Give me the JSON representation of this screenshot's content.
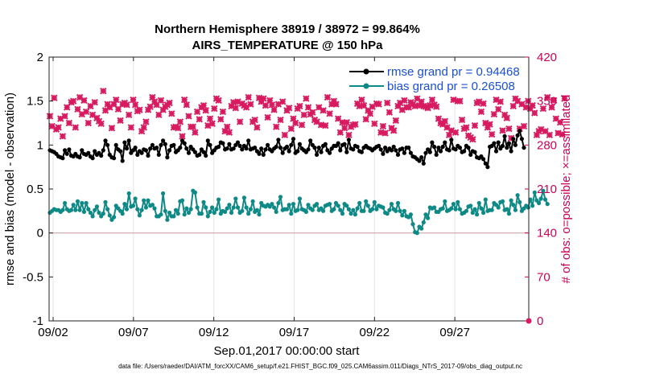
{
  "chart_data": {
    "type": "line",
    "title": "Northern Hemisphere 38919 / 38972 = 99.864%",
    "subtitle": "AIRS_TEMPERATURE @ 150 hPa",
    "ylabel": "rmse and bias (model - observation)",
    "ylabel_right": "# of obs: o=possible; ×=assimilated",
    "xlabel": "Sep.01,2017 00:00:00 start",
    "footer": "data file: /Users/raeder/DAI/ATM_forcXX/CAM6_setup/f.e21.FHIST_BGC.f09_025.CAM6assim.011/Diags_NTrS_2017-09/obs_diag_output.nc",
    "ylim": [
      -1,
      2
    ],
    "ylim_right": [
      0,
      420
    ],
    "xlim_days": [
      1.55,
      31.4
    ],
    "yticks": [
      "2",
      "1.5",
      "1",
      "0.5",
      "0",
      "-0.5",
      "-1"
    ],
    "yticks_right": [
      "420",
      "350",
      "280",
      "210",
      "140",
      "70",
      "0"
    ],
    "xticks": [
      {
        "day": 1.8,
        "label": "09/02"
      },
      {
        "day": 6.8,
        "label": "09/07"
      },
      {
        "day": 11.8,
        "label": "09/12"
      },
      {
        "day": 16.8,
        "label": "09/17"
      },
      {
        "day": 21.8,
        "label": "09/22"
      },
      {
        "day": 26.8,
        "label": "09/27"
      }
    ],
    "colors": {
      "rmse": "#000000",
      "bias": "#0e8a86",
      "obs": "#d81b60",
      "legend_text": "#1a4fd6",
      "right_axis": "#cc0055"
    },
    "legend": {
      "placement": "top-right",
      "rmse_label": "rmse grand pr = 0.94468",
      "bias_label": "bias grand pr = 0.26508"
    },
    "series": [
      {
        "name": "rmse",
        "values": [
          0.94,
          0.93,
          0.92,
          0.9,
          0.87,
          0.86,
          0.85,
          0.94,
          0.9,
          0.95,
          0.88,
          0.87,
          0.9,
          0.87,
          0.86,
          0.94,
          0.9,
          0.89,
          0.91,
          0.87,
          0.85,
          0.93,
          0.89,
          0.91,
          0.88,
          0.94,
          1.05,
          1.0,
          0.89,
          0.86,
          0.85,
          1.0,
          0.95,
          0.93,
          0.82,
          1.03,
          0.96,
          1.05,
          0.91,
          0.94,
          0.97,
          0.89,
          0.93,
          0.91,
          0.95,
          0.94,
          0.88,
          0.96,
          1.0,
          0.96,
          0.97,
          0.89,
          1.0,
          1.05,
          1.01,
          0.86,
          0.94,
          0.99,
          1.0,
          0.92,
          0.94,
          0.97,
          1.05,
          1.02,
          0.96,
          0.91,
          0.98,
          0.95,
          0.92,
          0.88,
          0.89,
          0.95,
          0.92,
          0.88,
          1.05,
          1.0,
          0.91,
          0.94,
          0.97,
          0.98,
          1.03,
          1.02,
          0.95,
          0.96,
          1.01,
          0.95,
          0.96,
          1.0,
          1.03,
          0.99,
          0.95,
          0.99,
          0.96,
          1.05,
          0.95,
          0.96,
          0.97,
          0.93,
          0.9,
          0.96,
          0.89,
          0.95,
          1.0,
          0.95,
          0.93,
          0.96,
          0.98,
          1.06,
          0.97,
          0.91,
          0.96,
          0.98,
          0.93,
          1.0,
          1.07,
          0.91,
          0.93,
          1.01,
          0.96,
          0.94,
          0.92,
          0.95,
          1.05,
          1.0,
          0.97,
          0.89,
          0.97,
          0.92,
          0.99,
          1.01,
          0.94,
          0.91,
          0.96,
          0.99,
          0.99,
          1.02,
          0.94,
          1.0,
          1.01,
          0.92,
          1.06,
          0.96,
          0.95,
          0.99,
          0.98,
          0.93,
          0.92,
          0.97,
          0.99,
          0.97,
          0.96,
          0.94,
          0.96,
          0.98,
          0.99,
          0.95,
          0.9,
          0.97,
          0.93,
          0.96,
          0.94,
          0.98,
          0.94,
          0.89,
          0.95,
          0.96,
          0.91,
          0.97,
          0.97,
          0.91,
          0.87,
          0.86,
          0.84,
          0.82,
          0.86,
          0.79,
          0.91,
          0.95,
          0.92,
          1.03,
          0.98,
          0.89,
          0.97,
          0.93,
          0.98,
          1.03,
          0.95,
          0.94,
          1.06,
          0.96,
          0.95,
          0.99,
          0.97,
          0.92,
          0.93,
          0.99,
          0.97,
          0.89,
          0.93,
          0.92,
          0.86,
          0.85,
          0.87,
          0.84,
          0.79,
          0.75,
          0.98,
          0.99,
          1.02,
          0.93,
          1.03,
          0.96,
          0.99,
          1.1,
          0.97,
          1.02,
          0.93,
          1.07,
          1.0,
          1.11,
          1.16,
          1.07,
          0.97
        ]
      },
      {
        "name": "bias",
        "values": [
          0.23,
          0.25,
          0.27,
          0.26,
          0.26,
          0.24,
          0.26,
          0.34,
          0.27,
          0.25,
          0.26,
          0.32,
          0.26,
          0.36,
          0.26,
          0.34,
          0.24,
          0.34,
          0.27,
          0.23,
          0.19,
          0.26,
          0.3,
          0.23,
          0.19,
          0.22,
          0.35,
          0.27,
          0.2,
          0.15,
          0.18,
          0.31,
          0.28,
          0.25,
          0.22,
          0.33,
          0.27,
          0.45,
          0.3,
          0.31,
          0.39,
          0.27,
          0.2,
          0.26,
          0.37,
          0.29,
          0.37,
          0.31,
          0.32,
          0.28,
          0.19,
          0.19,
          0.21,
          0.45,
          0.25,
          0.15,
          0.23,
          0.19,
          0.19,
          0.26,
          0.22,
          0.36,
          0.37,
          0.21,
          0.28,
          0.23,
          0.27,
          0.48,
          0.46,
          0.29,
          0.22,
          0.22,
          0.35,
          0.29,
          0.19,
          0.24,
          0.29,
          0.23,
          0.27,
          0.38,
          0.22,
          0.25,
          0.24,
          0.28,
          0.32,
          0.23,
          0.29,
          0.39,
          0.29,
          0.23,
          0.25,
          0.4,
          0.29,
          0.22,
          0.27,
          0.36,
          0.24,
          0.26,
          0.21,
          0.34,
          0.31,
          0.3,
          0.32,
          0.3,
          0.33,
          0.29,
          0.24,
          0.34,
          0.41,
          0.26,
          0.27,
          0.27,
          0.32,
          0.22,
          0.33,
          0.25,
          0.26,
          0.39,
          0.27,
          0.26,
          0.24,
          0.32,
          0.28,
          0.26,
          0.31,
          0.33,
          0.26,
          0.28,
          0.25,
          0.31,
          0.32,
          0.33,
          0.25,
          0.27,
          0.34,
          0.31,
          0.26,
          0.22,
          0.33,
          0.31,
          0.27,
          0.22,
          0.26,
          0.21,
          0.28,
          0.34,
          0.25,
          0.25,
          0.36,
          0.31,
          0.25,
          0.27,
          0.35,
          0.27,
          0.31,
          0.3,
          0.29,
          0.23,
          0.22,
          0.26,
          0.33,
          0.27,
          0.25,
          0.34,
          0.25,
          0.2,
          0.25,
          0.19,
          0.18,
          0.21,
          0.1,
          0.01,
          0.0,
          0.07,
          0.05,
          0.12,
          0.21,
          0.17,
          0.29,
          0.28,
          0.29,
          0.24,
          0.24,
          0.27,
          0.28,
          0.36,
          0.25,
          0.26,
          0.28,
          0.33,
          0.27,
          0.35,
          0.27,
          0.22,
          0.23,
          0.25,
          0.3,
          0.31,
          0.23,
          0.27,
          0.21,
          0.34,
          0.28,
          0.23,
          0.38,
          0.25,
          0.26,
          0.26,
          0.34,
          0.32,
          0.29,
          0.35,
          0.36,
          0.26,
          0.27,
          0.22,
          0.37,
          0.32,
          0.26,
          0.43,
          0.35,
          0.25,
          0.28,
          0.31,
          0.29,
          0.38,
          0.31,
          0.46,
          0.37,
          0.34,
          0.39,
          0.48,
          0.38,
          0.33
        ]
      },
      {
        "name": "obs_assimilated",
        "axis": "right",
        "values": [
          326,
          310,
          355,
          305,
          308,
          322,
          294,
          326,
          340,
          315,
          348,
          350,
          308,
          337,
          356,
          329,
          351,
          333,
          315,
          342,
          328,
          348,
          323,
          318,
          314,
          366,
          335,
          345,
          340,
          307,
          345,
          352,
          337,
          319,
          345,
          347,
          344,
          328,
          308,
          352,
          344,
          334,
          336,
          302,
          308,
          317,
          336,
          341,
          356,
          349,
          344,
          328,
          351,
          336,
          341,
          344,
          347,
          330,
          308,
          309,
          307,
          317,
          294,
          352,
          344,
          326,
          309,
          309,
          300,
          333,
          321,
          340,
          343,
          335,
          311,
          322,
          314,
          338,
          354,
          351,
          321,
          333,
          302,
          309,
          300,
          342,
          348,
          339,
          349,
          317,
          346,
          343,
          340,
          356,
          345,
          317,
          320,
          308,
          355,
          349,
          354,
          343,
          324,
          351,
          344,
          336,
          309,
          345,
          320,
          349,
          296,
          335,
          339,
          306,
          322,
          315,
          338,
          342,
          312,
          328,
          354,
          340,
          329,
          332,
          320,
          317,
          340,
          312,
          335,
          311,
          356,
          330,
          345,
          350,
          345,
          322,
          300,
          316,
          307,
          316,
          296,
          309,
          312,
          313,
          346,
          342,
          352,
          343,
          321,
          335,
          330,
          341,
          314,
          346,
          345,
          300,
          310,
          299,
          347,
          332,
          307,
          303,
          319,
          342,
          347,
          336,
          351,
          340,
          340,
          348,
          345,
          342,
          354,
          343,
          349,
          342,
          341,
          339,
          343,
          352,
          344,
          341,
          322,
          315,
          313,
          318,
          308,
          296,
          303,
          352,
          300,
          350,
          350,
          320,
          306,
          308,
          295,
          292,
          289,
          311,
          347,
          349,
          333,
          346,
          315,
          308,
          313,
          297,
          329,
          352,
          337,
          349,
          303,
          328,
          323,
          306,
          291,
          342,
          354,
          350,
          306,
          345,
          310,
          340,
          350,
          338,
          343,
          331,
          296,
          302,
          305,
          338,
          302,
          356,
          296,
          340,
          351,
          322,
          299,
          316,
          297,
          354
        ]
      }
    ]
  }
}
